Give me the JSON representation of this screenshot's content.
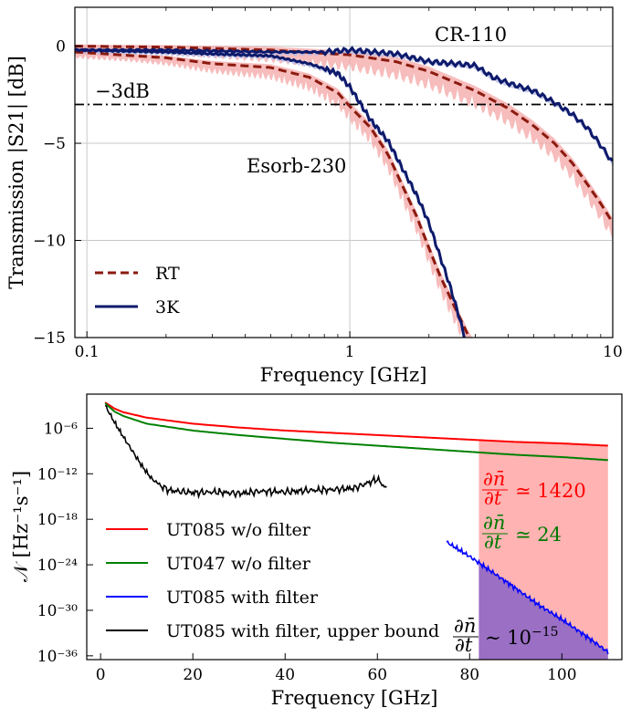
{
  "chart_data": [
    {
      "type": "line",
      "xscale": "log",
      "xlim": [
        0.09,
        10
      ],
      "ylim": [
        -15,
        2
      ],
      "xlabel": "Frequency [GHz]",
      "ylabel": "Transmission |S21| [dB]",
      "xticks": [
        {
          "v": 0.1,
          "label": "0.1"
        },
        {
          "v": 1,
          "label": "1"
        },
        {
          "v": 10,
          "label": "10"
        }
      ],
      "yticks": [
        {
          "v": 0,
          "label": "0"
        },
        {
          "v": -5,
          "label": "−5"
        },
        {
          "v": -10,
          "label": "−10"
        },
        {
          "v": -15,
          "label": "−15"
        }
      ],
      "grid": true,
      "hline": {
        "y": -3,
        "label": "−3dB"
      },
      "annotations": [
        {
          "text": "CR-110",
          "x": 4.3,
          "y": 0.6
        },
        {
          "text": "Esorb-230",
          "x": 0.33,
          "y": -6.0
        }
      ],
      "legend": {
        "position": "lower-left",
        "entries": [
          {
            "name": "RT",
            "color": "#8b1a0f",
            "style": "dashed"
          },
          {
            "name": "3K",
            "color": "#0d1a6b",
            "style": "solid"
          }
        ]
      },
      "series": [
        {
          "name": "CR-110 RT",
          "style": "dashed",
          "color": "#8b1a0f",
          "band_color": "#f4a6a6",
          "x": [
            0.09,
            0.2,
            0.5,
            1,
            1.5,
            2,
            3,
            4,
            5,
            6,
            7,
            8,
            9,
            10
          ],
          "y": [
            0,
            -0.05,
            -0.2,
            -0.45,
            -0.8,
            -1.3,
            -2.3,
            -3.2,
            -4.1,
            -5.0,
            -6.0,
            -7.1,
            -8.1,
            -9.1
          ]
        },
        {
          "name": "CR-110 3K",
          "style": "solid",
          "color": "#0d1a6b",
          "band_color": "#b8bce6",
          "x": [
            0.09,
            0.2,
            0.5,
            0.8,
            1.0,
            1.5,
            2.0,
            2.5,
            3.0,
            3.5,
            4.0,
            5.0,
            6.0,
            7.0,
            8.0,
            9.0,
            10.0
          ],
          "y": [
            -0.2,
            -0.2,
            -0.3,
            -0.3,
            -0.2,
            -0.4,
            -0.8,
            -0.9,
            -1.0,
            -1.6,
            -1.9,
            -2.3,
            -2.9,
            -3.5,
            -4.2,
            -5.1,
            -6.0
          ]
        },
        {
          "name": "Esorb-230 RT",
          "style": "dashed",
          "color": "#8b1a0f",
          "band_color": "#f4a6a6",
          "x": [
            0.09,
            0.2,
            0.3,
            0.5,
            0.7,
            0.9,
            1.0,
            1.2,
            1.4,
            1.6,
            1.8,
            2.0,
            2.2,
            2.5,
            2.8,
            3.0
          ],
          "y": [
            -0.3,
            -0.6,
            -0.9,
            -1.1,
            -1.6,
            -2.4,
            -3.1,
            -4.2,
            -5.6,
            -7.3,
            -8.8,
            -10.4,
            -11.8,
            -13.4,
            -14.8,
            -15.5
          ]
        },
        {
          "name": "Esorb-230 3K",
          "style": "solid",
          "color": "#0d1a6b",
          "band_color": "#b8bce6",
          "x": [
            0.09,
            0.2,
            0.3,
            0.5,
            0.7,
            0.9,
            1.0,
            1.2,
            1.4,
            1.6,
            1.8,
            2.0,
            2.2,
            2.4,
            2.6,
            2.8
          ],
          "y": [
            -0.2,
            -0.3,
            -0.4,
            -0.5,
            -0.9,
            -1.4,
            -2.1,
            -3.8,
            -4.9,
            -6.4,
            -7.7,
            -9.1,
            -10.8,
            -12.3,
            -13.9,
            -15.5
          ]
        }
      ]
    },
    {
      "type": "line",
      "yscale": "log",
      "xlim": [
        -3,
        113
      ],
      "ylim_exp": [
        -36.5,
        -1.5
      ],
      "xlabel": "Frequency [GHz]",
      "ylabel": "𝒩 [Hz⁻¹s⁻¹]",
      "xticks": [
        {
          "v": 0,
          "label": "0"
        },
        {
          "v": 20,
          "label": "20"
        },
        {
          "v": 40,
          "label": "40"
        },
        {
          "v": 60,
          "label": "60"
        },
        {
          "v": 80,
          "label": "80"
        },
        {
          "v": 100,
          "label": "100"
        }
      ],
      "yticks": [
        {
          "v": -6,
          "label": "10⁻⁶"
        },
        {
          "v": -12,
          "label": "10⁻¹²"
        },
        {
          "v": -18,
          "label": "10⁻¹⁸"
        },
        {
          "v": -24,
          "label": "10⁻²⁴"
        },
        {
          "v": -30,
          "label": "10⁻³⁰"
        },
        {
          "v": -36,
          "label": "10⁻³⁶"
        }
      ],
      "shaded_region": {
        "x": [
          82,
          110
        ]
      },
      "annotations": [
        {
          "text": "∂n̄/∂t ≃ 1420",
          "color": "#ff0000"
        },
        {
          "text": "∂n̄/∂t ≃ 24",
          "color": "#007a00"
        },
        {
          "text": "∂n̄/∂t ∼ 10⁻¹⁵",
          "color": "#000000"
        }
      ],
      "legend": {
        "position": "lower-left"
      },
      "series": [
        {
          "name": "UT085 w/o filter",
          "color": "#ff0000",
          "x": [
            1,
            3,
            5,
            10,
            20,
            30,
            40,
            50,
            60,
            70,
            80,
            90,
            100,
            110
          ],
          "y_exp": [
            -2.6,
            -3.4,
            -3.9,
            -4.6,
            -5.4,
            -5.9,
            -6.3,
            -6.6,
            -6.9,
            -7.2,
            -7.5,
            -7.8,
            -8.0,
            -8.3
          ]
        },
        {
          "name": "UT047 w/o filter",
          "color": "#008000",
          "x": [
            1,
            3,
            5,
            10,
            20,
            30,
            40,
            50,
            60,
            70,
            80,
            90,
            100,
            110
          ],
          "y_exp": [
            -2.7,
            -3.8,
            -4.4,
            -5.4,
            -6.3,
            -6.9,
            -7.4,
            -7.9,
            -8.3,
            -8.7,
            -9.1,
            -9.5,
            -9.8,
            -10.2
          ]
        },
        {
          "name": "UT085 with filter",
          "color": "#0000ff",
          "x": [
            75,
            80,
            85,
            90,
            95,
            100,
            105,
            110
          ],
          "y_exp": [
            -21.0,
            -22.9,
            -25.0,
            -27.1,
            -29.3,
            -31.2,
            -33.3,
            -35.5
          ]
        },
        {
          "name": "UT085 with filter, upper bound",
          "color": "#000000",
          "x": [
            1,
            3,
            5,
            7,
            9,
            11,
            13,
            15,
            20,
            25,
            30,
            35,
            40,
            45,
            50,
            55,
            60,
            62
          ],
          "y_exp": [
            -3.0,
            -5.2,
            -7.2,
            -9.1,
            -11.0,
            -12.6,
            -13.6,
            -14.2,
            -14.5,
            -14.4,
            -14.6,
            -14.3,
            -14.4,
            -14.2,
            -14.1,
            -13.9,
            -12.7,
            -14.0
          ]
        }
      ]
    }
  ]
}
